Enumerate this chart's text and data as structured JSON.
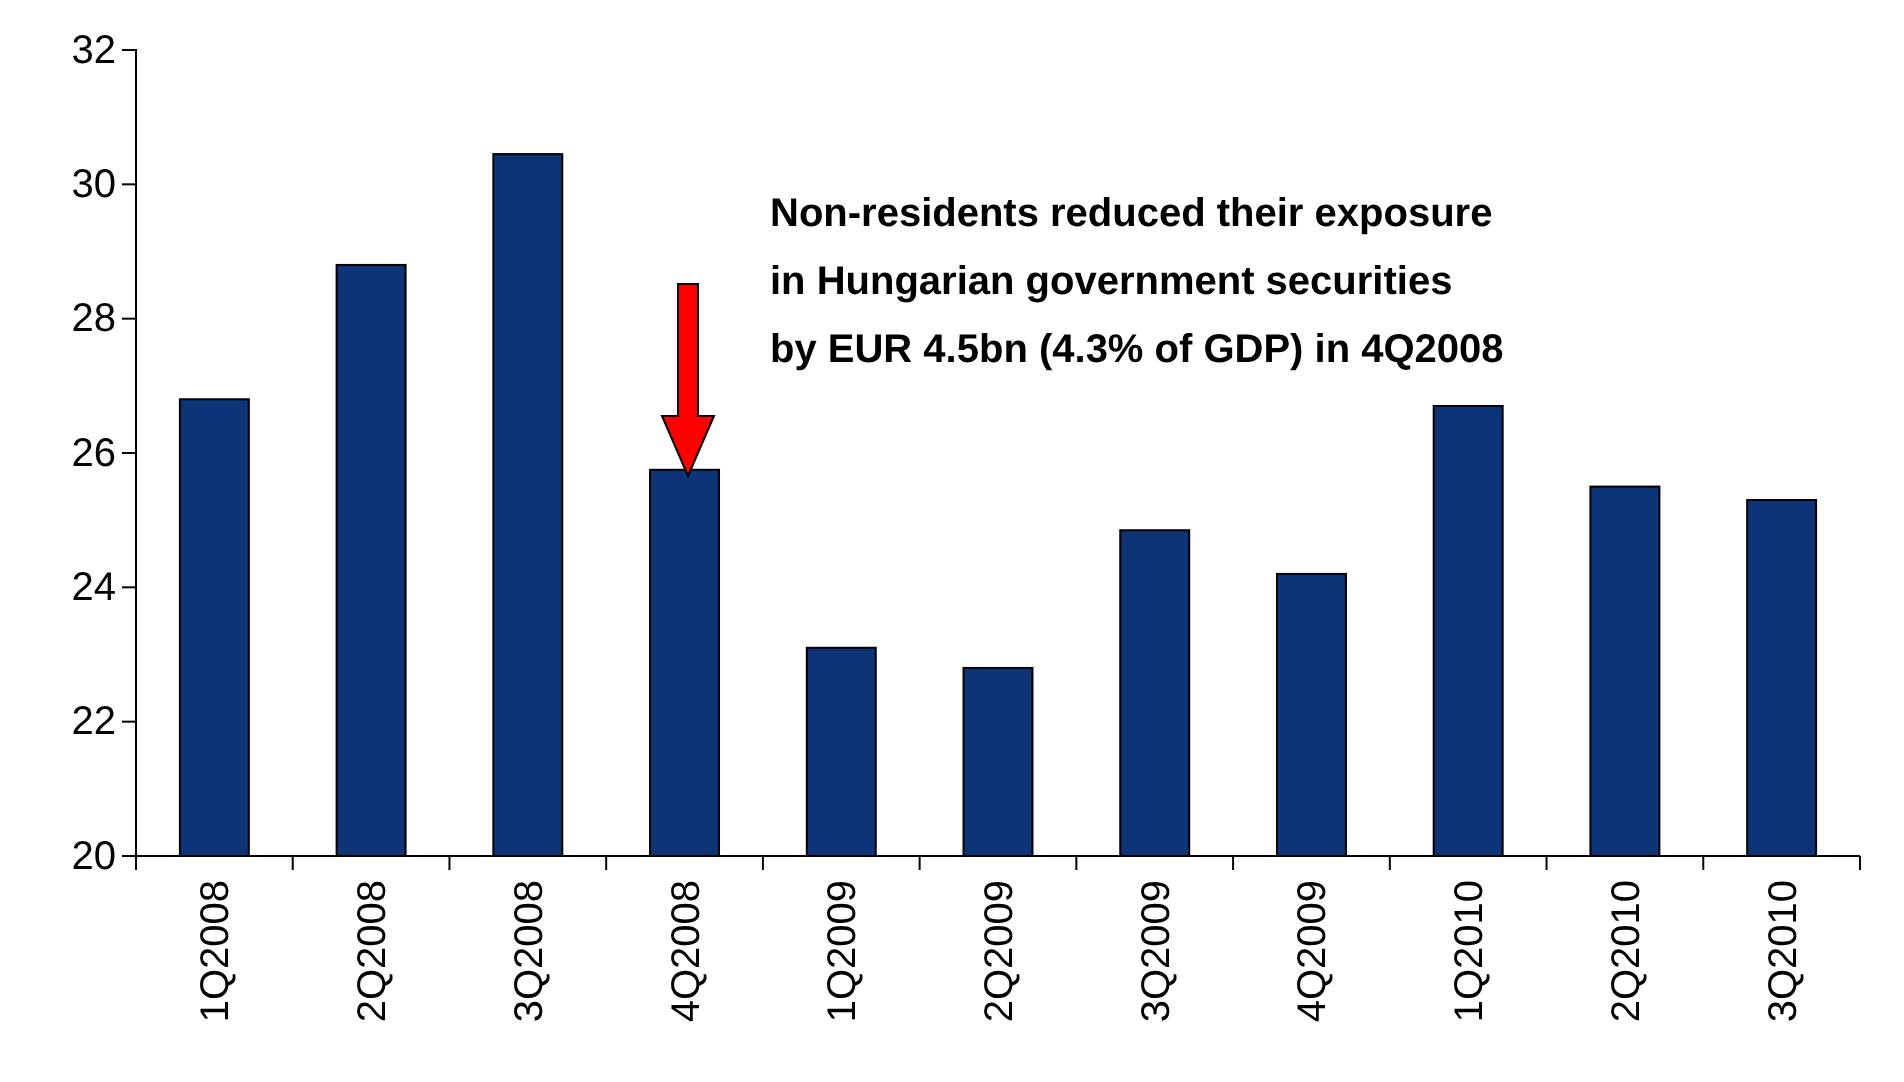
{
  "chart_data": {
    "type": "bar",
    "categories": [
      "1Q2008",
      "2Q2008",
      "3Q2008",
      "4Q2008",
      "1Q2009",
      "2Q2009",
      "3Q2009",
      "4Q2009",
      "1Q2010",
      "2Q2010",
      "3Q2010"
    ],
    "values": [
      26.8,
      28.8,
      30.45,
      25.75,
      23.1,
      22.8,
      24.85,
      24.2,
      26.7,
      25.5,
      25.3
    ],
    "color": "#0c3476",
    "ylim": [
      20,
      32
    ],
    "yticks": [
      20,
      22,
      24,
      26,
      28,
      30,
      32
    ],
    "grid": false,
    "annotations": [
      "Non-residents reduced their exposure\nin Hungarian government securities\nby EUR 4.5bn (4.3% of GDP) in 4Q2008"
    ]
  }
}
